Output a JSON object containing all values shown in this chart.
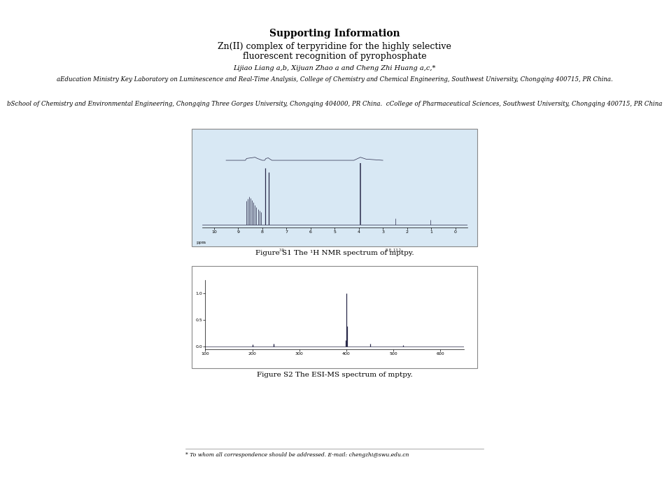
{
  "title": "Supporting Information",
  "subtitle_line1": "Zn(II) complex of terpyridine for the highly selective",
  "subtitle_line2": "fluorescent recognition of pyrophosphate",
  "authors": "Lijiao Liang a,b, Xijuan Zhao a and Cheng Zhi Huang a,c,*",
  "affiliation_a": "aEducation Ministry Key Laboratory on Luminescence and Real-Time Analysis, College of Chemistry and Chemical Engineering, Southwest University, Chongqing 400715, PR China.",
  "affiliation_b": "bSchool of Chemistry and Environmental Engineering, Chongqing Three Gorges University, Chongqing 404000, PR China.  cCollege of Pharmaceutical Sciences, Southwest University, Chongqing 400715, PR China",
  "fig1_caption": "Figure S1 The ¹H NMR spectrum of mptpy.",
  "fig2_caption": "Figure S2 The ESI-MS spectrum of mptpy.",
  "footnote": "* To whom all correspondence should be addressed. E-mail: chengzhi@swu.edu.cn",
  "bg_color": "#ffffff",
  "text_color": "#000000",
  "fig1_bg_color": "#d8e8f4",
  "fig2_bg_color": "#ffffff",
  "fig_border_color": "#888888"
}
